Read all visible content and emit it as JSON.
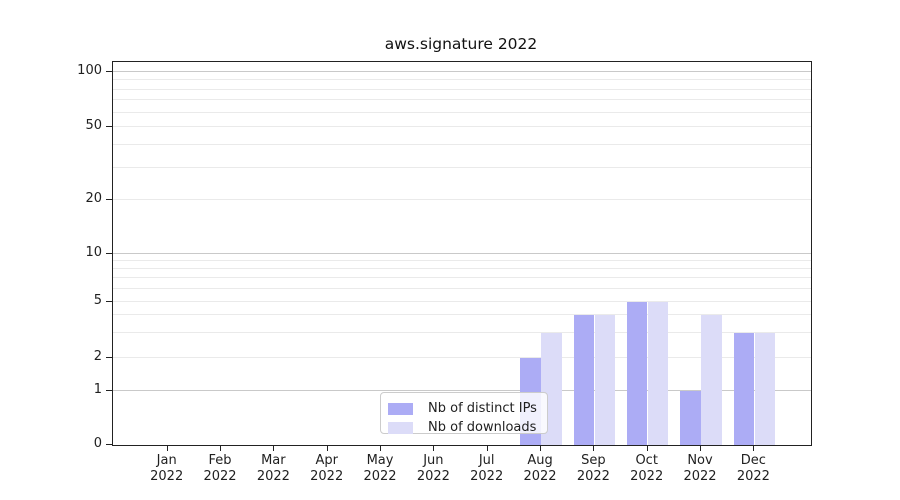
{
  "chart_data": {
    "type": "bar",
    "title": "aws.signature 2022",
    "categories": [
      "Jan 2022",
      "Feb 2022",
      "Mar 2022",
      "Apr 2022",
      "May 2022",
      "Jun 2022",
      "Jul 2022",
      "Aug 2022",
      "Sep 2022",
      "Oct 2022",
      "Nov 2022",
      "Dec 2022"
    ],
    "series": [
      {
        "name": "Nb of distinct IPs",
        "color": "#acacf5",
        "values": [
          0,
          0,
          0,
          0,
          0,
          0,
          0,
          2,
          4,
          5,
          1,
          3
        ]
      },
      {
        "name": "Nb of downloads",
        "color": "#dcdcf8",
        "values": [
          0,
          0,
          0,
          0,
          0,
          0,
          0,
          3,
          4,
          5,
          4,
          3
        ]
      }
    ],
    "y_axis": {
      "scale": "symlog",
      "tick_labels": [
        "0",
        "1",
        "2",
        "5",
        "10",
        "20",
        "50",
        "100"
      ],
      "tick_values": [
        0,
        1,
        2,
        5,
        10,
        20,
        50,
        100
      ],
      "major_gridlines": [
        1,
        10,
        100
      ],
      "minor_gridlines": [
        2,
        3,
        4,
        5,
        6,
        7,
        8,
        9,
        20,
        30,
        40,
        50,
        60,
        70,
        80,
        90
      ],
      "ylim": [
        0,
        113
      ]
    },
    "legend": {
      "position": "lower center"
    },
    "grid": "both"
  },
  "colors": {
    "grid_major": "#c9c9c9",
    "grid_minor": "#eaeaea",
    "spine": "#222222",
    "text": "#1f1f1f",
    "legend_border": "#cccccc"
  }
}
